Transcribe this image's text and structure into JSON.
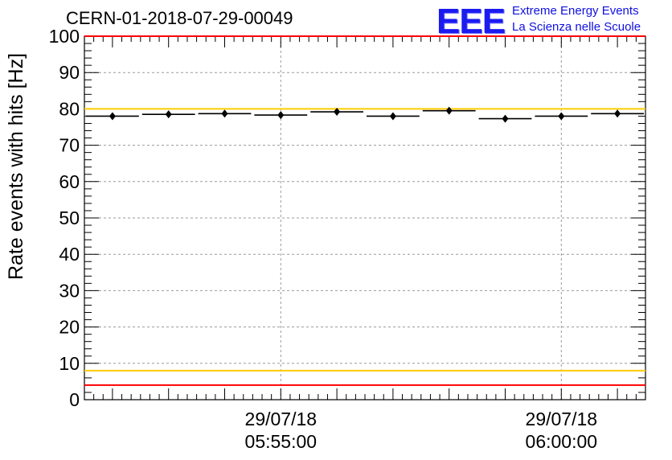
{
  "chart_data": {
    "type": "scatter",
    "title": "CERN-01-2018-07-29-00049",
    "ylabel": "Rate events with hits [Hz]",
    "xlabel": "",
    "ylim": [
      0,
      100
    ],
    "yticks": [
      0,
      10,
      20,
      30,
      40,
      50,
      60,
      70,
      80,
      90,
      100
    ],
    "xlim": [
      "05:51:30",
      "06:01:30"
    ],
    "xtick_labels": [
      {
        "time": "05:55:00",
        "date": "29/07/18",
        "clock": "05:55:00"
      },
      {
        "time": "06:00:00",
        "date": "29/07/18",
        "clock": "06:00:00"
      }
    ],
    "grid": true,
    "points": [
      {
        "x_start": "05:51:30",
        "x_end": "05:52:30",
        "y": 78.0
      },
      {
        "x_start": "05:52:30",
        "x_end": "05:53:30",
        "y": 78.5
      },
      {
        "x_start": "05:53:30",
        "x_end": "05:54:30",
        "y": 78.7
      },
      {
        "x_start": "05:54:30",
        "x_end": "05:55:30",
        "y": 78.3
      },
      {
        "x_start": "05:55:30",
        "x_end": "05:56:30",
        "y": 79.2
      },
      {
        "x_start": "05:56:30",
        "x_end": "05:57:30",
        "y": 78.0
      },
      {
        "x_start": "05:57:30",
        "x_end": "05:58:30",
        "y": 79.5
      },
      {
        "x_start": "05:58:30",
        "x_end": "05:59:30",
        "y": 77.3
      },
      {
        "x_start": "05:59:30",
        "x_end": "06:00:30",
        "y": 78.0
      },
      {
        "x_start": "06:00:30",
        "x_end": "06:01:30",
        "y": 78.7
      }
    ],
    "reference_lines": [
      {
        "y": 100,
        "color": "#ff0000"
      },
      {
        "y": 80,
        "color": "#ffcc00"
      },
      {
        "y": 8,
        "color": "#ffcc00"
      },
      {
        "y": 4,
        "color": "#ff0000"
      }
    ]
  },
  "logo": {
    "text": "EEE",
    "line1": "Extreme Energy Events",
    "line2": "La Scienza nelle Scuole"
  },
  "colors": {
    "logo": "#1b1bf0",
    "marker": "#000000",
    "red": "#ff0000",
    "yellow": "#ffcc00"
  }
}
